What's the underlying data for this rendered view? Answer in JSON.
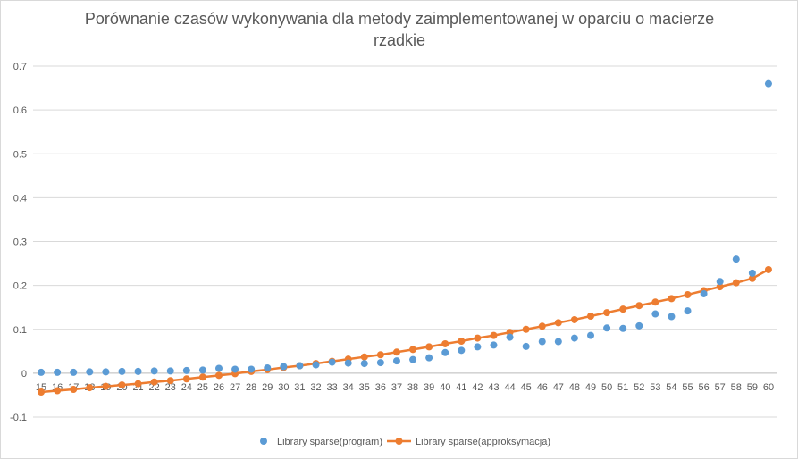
{
  "chart_data": {
    "type": "scatter",
    "title_lines": [
      "Porównanie czasów wykonywania dla metody zaimplementowanej w oparciu o macierze",
      "rzadkie"
    ],
    "x": [
      15,
      16,
      17,
      18,
      19,
      20,
      21,
      22,
      23,
      24,
      25,
      26,
      27,
      28,
      29,
      30,
      31,
      32,
      33,
      34,
      35,
      36,
      37,
      38,
      39,
      40,
      41,
      42,
      43,
      44,
      45,
      46,
      47,
      48,
      49,
      50,
      51,
      52,
      53,
      54,
      55,
      56,
      57,
      58,
      59,
      60
    ],
    "ylim": [
      -0.1,
      0.7
    ],
    "yticks": [
      "-0.1",
      "0",
      "0.1",
      "0.2",
      "0.3",
      "0.4",
      "0.5",
      "0.6",
      "0.7"
    ],
    "grid": true,
    "legend_position": "bottom",
    "series": [
      {
        "name": "Library sparse(program)",
        "kind": "markers",
        "color": "#5b9bd5",
        "values": [
          0.002,
          0.002,
          0.002,
          0.003,
          0.003,
          0.004,
          0.004,
          0.005,
          0.005,
          0.006,
          0.007,
          0.011,
          0.009,
          0.009,
          0.012,
          0.015,
          0.017,
          0.019,
          0.025,
          0.023,
          0.022,
          0.024,
          0.028,
          0.031,
          0.035,
          0.047,
          0.052,
          0.06,
          0.064,
          0.082,
          0.061,
          0.072,
          0.072,
          0.08,
          0.086,
          0.103,
          0.102,
          0.108,
          0.135,
          0.129,
          0.142,
          0.181,
          0.209,
          0.26,
          0.228,
          0.66
        ]
      },
      {
        "name": "Library sparse(approksymacja)",
        "kind": "line-markers",
        "color": "#ed7d31",
        "values": [
          -0.043,
          -0.04,
          -0.037,
          -0.033,
          -0.03,
          -0.027,
          -0.024,
          -0.02,
          -0.017,
          -0.013,
          -0.009,
          -0.005,
          -0.001,
          0.004,
          0.008,
          0.013,
          0.017,
          0.022,
          0.027,
          0.032,
          0.037,
          0.042,
          0.048,
          0.054,
          0.06,
          0.067,
          0.073,
          0.08,
          0.086,
          0.093,
          0.1,
          0.107,
          0.115,
          0.122,
          0.13,
          0.138,
          0.146,
          0.154,
          0.162,
          0.17,
          0.179,
          0.188,
          0.197,
          0.206,
          0.216,
          0.236
        ]
      }
    ]
  }
}
